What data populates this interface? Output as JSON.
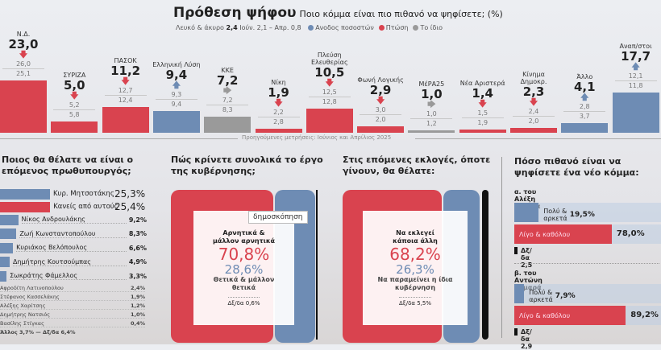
{
  "title": "Πρόθεση ψήφου",
  "subtitle": "Ποιο κόμμα είναι πιο πιθανό να ψηφίσετε; (%)",
  "blank_label": "Λευκό & άκυρο",
  "blank_value": "2,4",
  "blank_prev": "Ιούν. 2,1 – Απρ. 0,8",
  "legend": [
    {
      "label": "Ανοδος ποσοστών",
      "color": "#6e8cb4"
    },
    {
      "label": "Πτώση",
      "color": "#d9434f"
    },
    {
      "label": "Το ίδιο",
      "color": "#9a9a9a"
    }
  ],
  "prev_note": "Προηγούμενες μετρήσεις: Ιούνιος και Απρίλιος 2025",
  "tooltip": "δημοσκόπηση",
  "chart_data": [
    {
      "type": "bar",
      "title": "Πρόθεση ψήφου",
      "categories": [
        "Ν.Δ.",
        "ΣΥΡΙΖΑ",
        "ΠΑΣΟΚ",
        "Ελληνική Λύση",
        "ΚΚΕ",
        "Νίκη",
        "Πλεύση Ελευθερίας",
        "Φωνή Λογικής",
        "ΜέΡΑ25",
        "Νέα Αριστερά",
        "Κίνημα Δημοκρ.",
        "Άλλο",
        "Αναπ/στοι"
      ],
      "values": [
        "23,0",
        "5,0",
        "11,2",
        "9,4",
        "7,2",
        "1,9",
        "10,5",
        "2,9",
        "1,0",
        "1,4",
        "2,3",
        "4,1",
        "17,7"
      ],
      "num": [
        23.0,
        5.0,
        11.2,
        9.4,
        7.2,
        1.9,
        10.5,
        2.9,
        1.0,
        1.4,
        2.3,
        4.1,
        17.7
      ],
      "trend": [
        "down",
        "down",
        "down",
        "up",
        "same",
        "down",
        "down",
        "down",
        "same",
        "down",
        "down",
        "up",
        "up"
      ],
      "prev_1": [
        "26,0",
        "5,2",
        "12,7",
        "9,3",
        "7,2",
        "2,2",
        "12,5",
        "3,0",
        "1,0",
        "1,5",
        "2,4",
        "2,8",
        "12,1"
      ],
      "prev_2": [
        "25,1",
        "5,8",
        "12,4",
        "9,4",
        "8,3",
        "2,8",
        "12,8",
        "2,0",
        "1,2",
        "1,9",
        "2,0",
        "3,7",
        "11,8"
      ]
    },
    {
      "type": "bar",
      "title": "Ποιος θα θέλατε να είναι ο επόμενος πρωθυπουργός;",
      "main": [
        {
          "name": "Κυρ. Μητσοτάκης",
          "value": "25,3%",
          "num": 25.3,
          "color": "#6e8cb4"
        },
        {
          "name": "Κανείς από αυτούς",
          "value": "25,4%",
          "num": 25.4,
          "color": "#d9434f"
        },
        {
          "name": "Νίκος Ανδρουλάκης",
          "value": "9,2%",
          "num": 9.2,
          "color": "#6e8cb4"
        },
        {
          "name": "Ζωή Κωνσταντοπούλου",
          "value": "8,3%",
          "num": 8.3,
          "color": "#6e8cb4"
        },
        {
          "name": "Κυριάκος Βελόπουλος",
          "value": "6,6%",
          "num": 6.6,
          "color": "#6e8cb4"
        },
        {
          "name": "Δημήτρης Κουτσούμπας",
          "value": "4,9%",
          "num": 4.9,
          "color": "#6e8cb4"
        },
        {
          "name": "Σωκράτης Φάμελλος",
          "value": "3,3%",
          "num": 3.3,
          "color": "#6e8cb4"
        }
      ],
      "minor": [
        {
          "name": "Αφροδίτη Λατινοπούλου",
          "value": "2,4%"
        },
        {
          "name": "Στέφανος Κασσελάκης",
          "value": "1,9%"
        },
        {
          "name": "Αλέξης Χαρίτσης",
          "value": "1,2%"
        },
        {
          "name": "Δημήτρης Νατσιός",
          "value": "1,0%"
        },
        {
          "name": "Βασίλης Στίγκας",
          "value": "0,4%"
        }
      ],
      "footer": "Άλλος 3,7% — Δξ/δα 6,4%"
    },
    {
      "type": "bar",
      "title": "Πώς κρίνετε συνολικά το έργο της κυβέρνησης;",
      "neg_label": "Αρνητικά & μάλλον αρνητικά",
      "neg_value": "70,8%",
      "pos_value": "28,6%",
      "pos_label": "Θετικά & μάλλον θετικά",
      "dk": "Δξ/δα 0,6%"
    },
    {
      "type": "bar",
      "title": "Στις επόμενες εκλογές, όποτε γίνουν, θα θέλατε:",
      "neg_label": "Να εκλεγεί κάποια άλλη",
      "neg_value": "68,2%",
      "pos_value": "26,3%",
      "pos_label": "Να παραμείνει η ίδια κυβέρνηση",
      "dk": "Δξ/δα 5,5%"
    },
    {
      "type": "bar",
      "title": "Πόσο πιθανό είναι να ψηφίσετε ένα νέο κόμμα:",
      "groups": [
        {
          "label": "α. του Αλέξη Τσίπρα",
          "high_label": "Πολύ & αρκετά",
          "high": "19,5%",
          "high_num": 19.5,
          "low_label": "Λίγο & καθόλου",
          "low": "78,0%",
          "low_num": 78.0,
          "dk": "Δξ/δα 2,5"
        },
        {
          "label": "β. του Αντώνη Σαμαρά",
          "high_label": "Πολύ & αρκετά",
          "high": "7,9%",
          "high_num": 7.9,
          "low_label": "Λίγο & καθόλου",
          "low": "89,2%",
          "low_num": 89.2,
          "dk": "Δξ/δα 2,9"
        }
      ]
    }
  ]
}
